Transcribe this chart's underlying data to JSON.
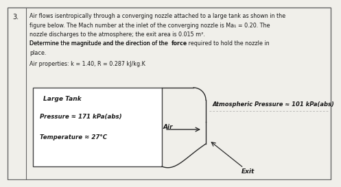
{
  "problem_number": "3.",
  "line1": "Air flows isentropically through a converging nozzle attached to a large tank as shown in the",
  "line2": "figure below. The Mach number at the inlet of the converging nozzle is Ma₁ = 0.20. The",
  "line3": "nozzle discharges to the atmosphere; the exit area is 0.015 m².",
  "line4a": "Determine the magnitude and the direction of the ",
  "line4b": "force",
  "line4c": " required to hold the nozzle in",
  "line5": "place.",
  "line6": "Air properties: k = 1.40, R = 0.287 kJ/kg.K",
  "large_tank_label": "Large Tank",
  "pressure_label": "Pressure ≈ 171 kPa(abs)",
  "temperature_label": "Temperature ≈ 27°C",
  "air_label": "Air",
  "atm_pressure_label": "Atmospheric Pressure ≈ 101 kPa(abs)",
  "exit_label": "Exit",
  "bg_color": "#f0efea",
  "text_color": "#1a1a1a",
  "line_color": "#2a2a2a",
  "border_color": "#666666"
}
